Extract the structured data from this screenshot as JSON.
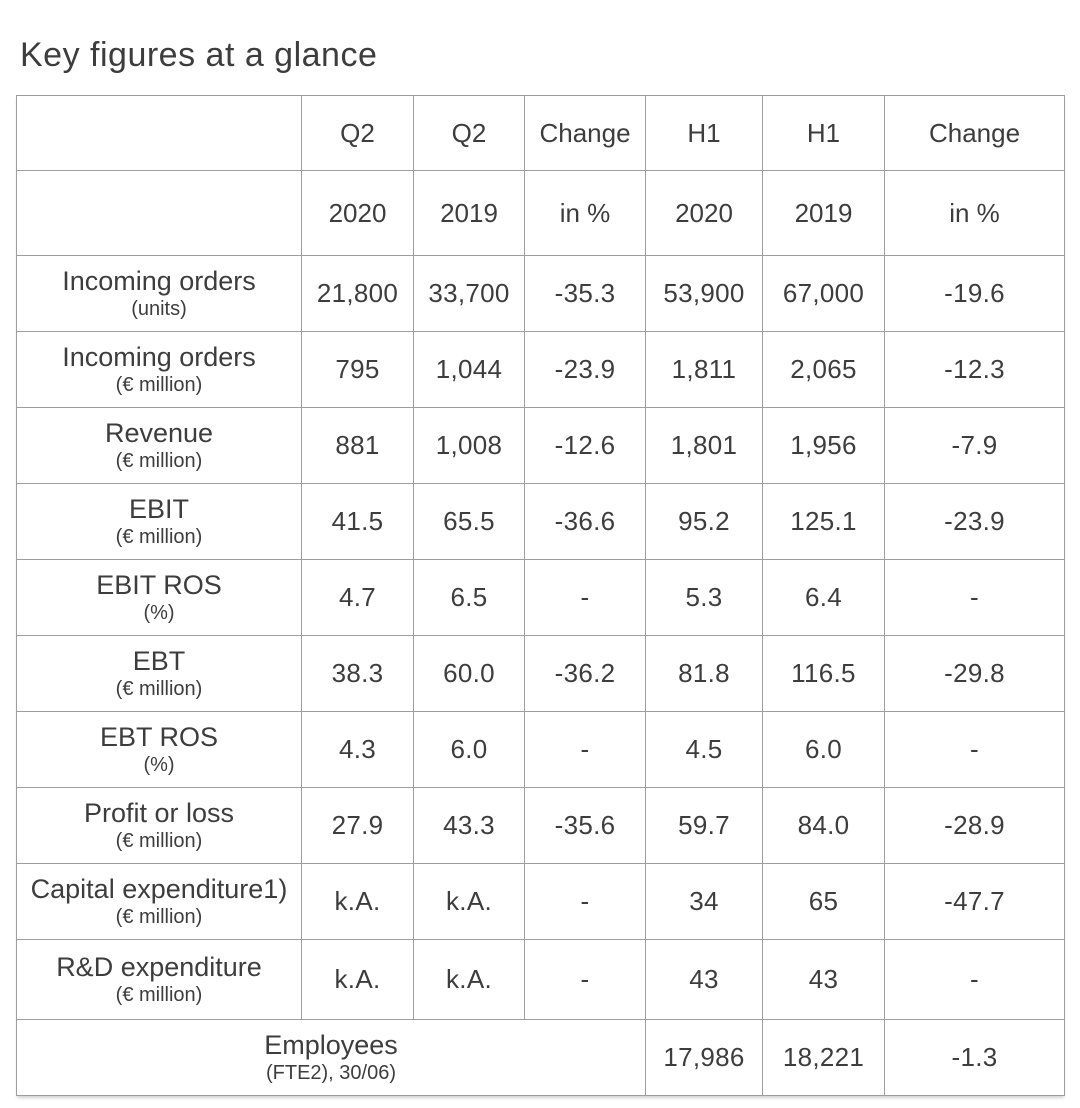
{
  "page": {
    "title": "Key figures at a glance"
  },
  "table": {
    "header_row1": [
      "",
      "Q2",
      "Q2",
      "Change",
      "H1",
      "H1",
      "Change"
    ],
    "header_row2": [
      "",
      "2020",
      "2019",
      "in %",
      "2020",
      "2019",
      "in %"
    ],
    "rows": [
      {
        "label": "Incoming orders",
        "sublabel": "(units)",
        "values": [
          "21,800",
          "33,700",
          "-35.3",
          "53,900",
          "67,000",
          "-19.6"
        ]
      },
      {
        "label": "Incoming orders",
        "sublabel": "(€ million)",
        "values": [
          "795",
          "1,044",
          "-23.9",
          "1,811",
          "2,065",
          "-12.3"
        ]
      },
      {
        "label": "Revenue",
        "sublabel": "(€ million)",
        "values": [
          "881",
          "1,008",
          "-12.6",
          "1,801",
          "1,956",
          "-7.9"
        ]
      },
      {
        "label": "EBIT",
        "sublabel": "(€ million)",
        "values": [
          "41.5",
          "65.5",
          "-36.6",
          "95.2",
          "125.1",
          "-23.9"
        ]
      },
      {
        "label": "EBIT ROS",
        "sublabel": "(%)",
        "values": [
          "4.7",
          "6.5",
          "-",
          "5.3",
          "6.4",
          "-"
        ]
      },
      {
        "label": "EBT",
        "sublabel": "(€ million)",
        "values": [
          "38.3",
          "60.0",
          "-36.2",
          "81.8",
          "116.5",
          "-29.8"
        ]
      },
      {
        "label": "EBT ROS",
        "sublabel": "(%)",
        "values": [
          "4.3",
          "6.0",
          "-",
          "4.5",
          "6.0",
          "-"
        ]
      },
      {
        "label": "Profit or loss",
        "sublabel": "(€ million)",
        "values": [
          "27.9",
          "43.3",
          "-35.6",
          "59.7",
          "84.0",
          "-28.9"
        ]
      },
      {
        "label": "Capital expenditure1)",
        "sublabel": "(€ million)",
        "values": [
          "k.A.",
          "k.A.",
          "-",
          "34",
          "65",
          "-47.7"
        ]
      },
      {
        "label": "R&D expenditure",
        "sublabel": "(€ million)",
        "tall": true,
        "values": [
          "k.A.",
          "k.A.",
          "-",
          "43",
          "43",
          "-"
        ]
      },
      {
        "label": "Employees",
        "sublabel": "(FTE2),  30/06)",
        "label_colspan": 4,
        "values": [
          "17,986",
          "18,221",
          "-1.3"
        ]
      }
    ]
  }
}
